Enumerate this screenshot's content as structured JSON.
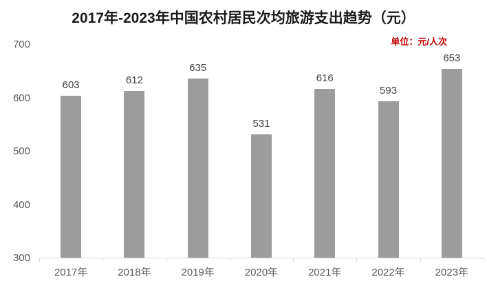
{
  "chart_data": {
    "type": "bar",
    "title": "2017年-2023年中国农村居民次均旅游支出趋势（元）",
    "unit_annotation": "单位：元/人次",
    "categories": [
      "2017年",
      "2018年",
      "2019年",
      "2020年",
      "2021年",
      "2022年",
      "2023年"
    ],
    "values": [
      603,
      612,
      635,
      531,
      616,
      593,
      653
    ],
    "xlabel": "",
    "ylabel": "",
    "ylim": [
      300,
      700
    ],
    "yticks": [
      300,
      400,
      500,
      600,
      700
    ],
    "grid": false,
    "legend": "none",
    "value_labels_shown": true,
    "colors": {
      "bar": "#9c9c9c",
      "value_label": "#3f3f3f",
      "axis_line": "#d9d9d9",
      "tick_label": "#595959",
      "title": "#1a1a1a",
      "unit_annotation": "#c00000",
      "background": "#ffffff"
    }
  }
}
